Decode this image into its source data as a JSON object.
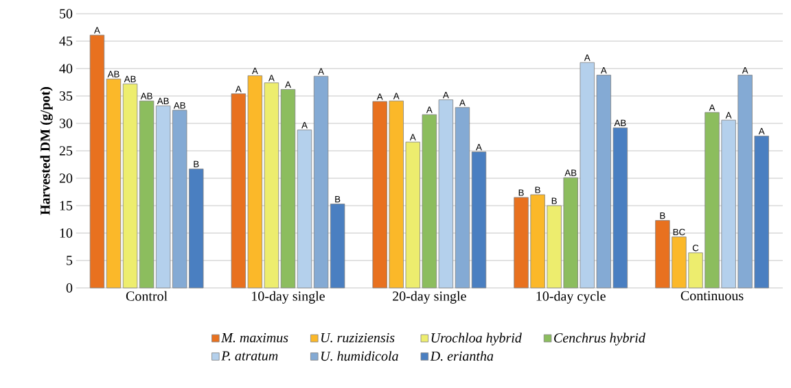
{
  "chart_data": {
    "type": "bar",
    "ylabel": "Harvested DM (g/pot)",
    "categories": [
      "Control",
      "10-day single",
      "20-day single",
      "10-day cycle",
      "Continuous"
    ],
    "ylim": [
      0,
      50
    ],
    "yticks": [
      0,
      5,
      10,
      15,
      20,
      25,
      30,
      35,
      40,
      45,
      50
    ],
    "grid": "y",
    "legend": "bottom",
    "series": [
      {
        "name": "M. maximus",
        "color": "#e8711f",
        "values": [
          46.1,
          35.4,
          34.0,
          16.5,
          12.3
        ],
        "value_labels": [
          "A",
          "A",
          "A",
          "B",
          "B"
        ]
      },
      {
        "name": "U. ruziziensis",
        "color": "#fbb829",
        "values": [
          38.1,
          38.7,
          34.1,
          17.0,
          9.3
        ],
        "value_labels": [
          "AB",
          "A",
          "A",
          "B",
          "BC"
        ]
      },
      {
        "name": "Urochloa hybrid",
        "color": "#eded6e",
        "values": [
          37.2,
          37.4,
          26.6,
          15.0,
          6.4
        ],
        "value_labels": [
          "AB",
          "A",
          "A",
          "B",
          "C"
        ]
      },
      {
        "name": "Cenchrus hybrid",
        "color": "#8cbd5e",
        "values": [
          34.1,
          36.2,
          31.6,
          20.1,
          32.0
        ],
        "value_labels": [
          "AB",
          "A",
          "A",
          "AB",
          "A"
        ]
      },
      {
        "name": "P. atratum",
        "color": "#b4d0ec",
        "values": [
          33.2,
          28.8,
          34.3,
          41.1,
          30.6
        ],
        "value_labels": [
          "AB",
          "A",
          "A",
          "A",
          "A"
        ]
      },
      {
        "name": "U. humidicola",
        "color": "#84aad4",
        "values": [
          32.4,
          38.6,
          32.9,
          38.8,
          38.8
        ],
        "value_labels": [
          "AB",
          "A",
          "A",
          "A",
          "A"
        ]
      },
      {
        "name": "D. eriantha",
        "color": "#4a7fc1",
        "values": [
          21.7,
          15.3,
          24.8,
          29.2,
          27.7
        ],
        "value_labels": [
          "B",
          "B",
          "A",
          "AB",
          "A"
        ]
      }
    ]
  }
}
